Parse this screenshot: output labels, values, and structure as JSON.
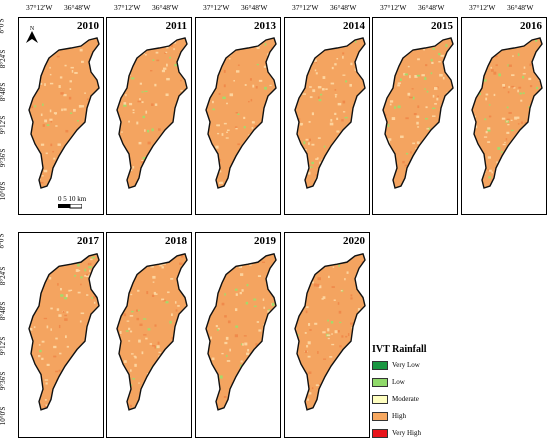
{
  "map": {
    "longitude_labels": [
      "37°12'W",
      "36°48'W"
    ],
    "latitude_labels": [
      "8°0'S",
      "8°24'S",
      "8°48'S",
      "9°12'S",
      "9°36'S",
      "10°0'S"
    ],
    "panels": [
      {
        "year": "2010"
      },
      {
        "year": "2011"
      },
      {
        "year": "2013"
      },
      {
        "year": "2014"
      },
      {
        "year": "2015"
      },
      {
        "year": "2016"
      },
      {
        "year": "2017"
      },
      {
        "year": "2018"
      },
      {
        "year": "2019"
      },
      {
        "year": "2020"
      }
    ],
    "scale_label": "0  5 10 km",
    "north_label": "N"
  },
  "legend": {
    "title": "IVT Rainfall",
    "items": [
      {
        "label": "Very Low",
        "color": "#1a9641"
      },
      {
        "label": "Low",
        "color": "#8fd96a"
      },
      {
        "label": "Moderate",
        "color": "#ffffc0"
      },
      {
        "label": "High",
        "color": "#f7a85f"
      },
      {
        "label": "Very High",
        "color": "#e8141b"
      }
    ]
  }
}
